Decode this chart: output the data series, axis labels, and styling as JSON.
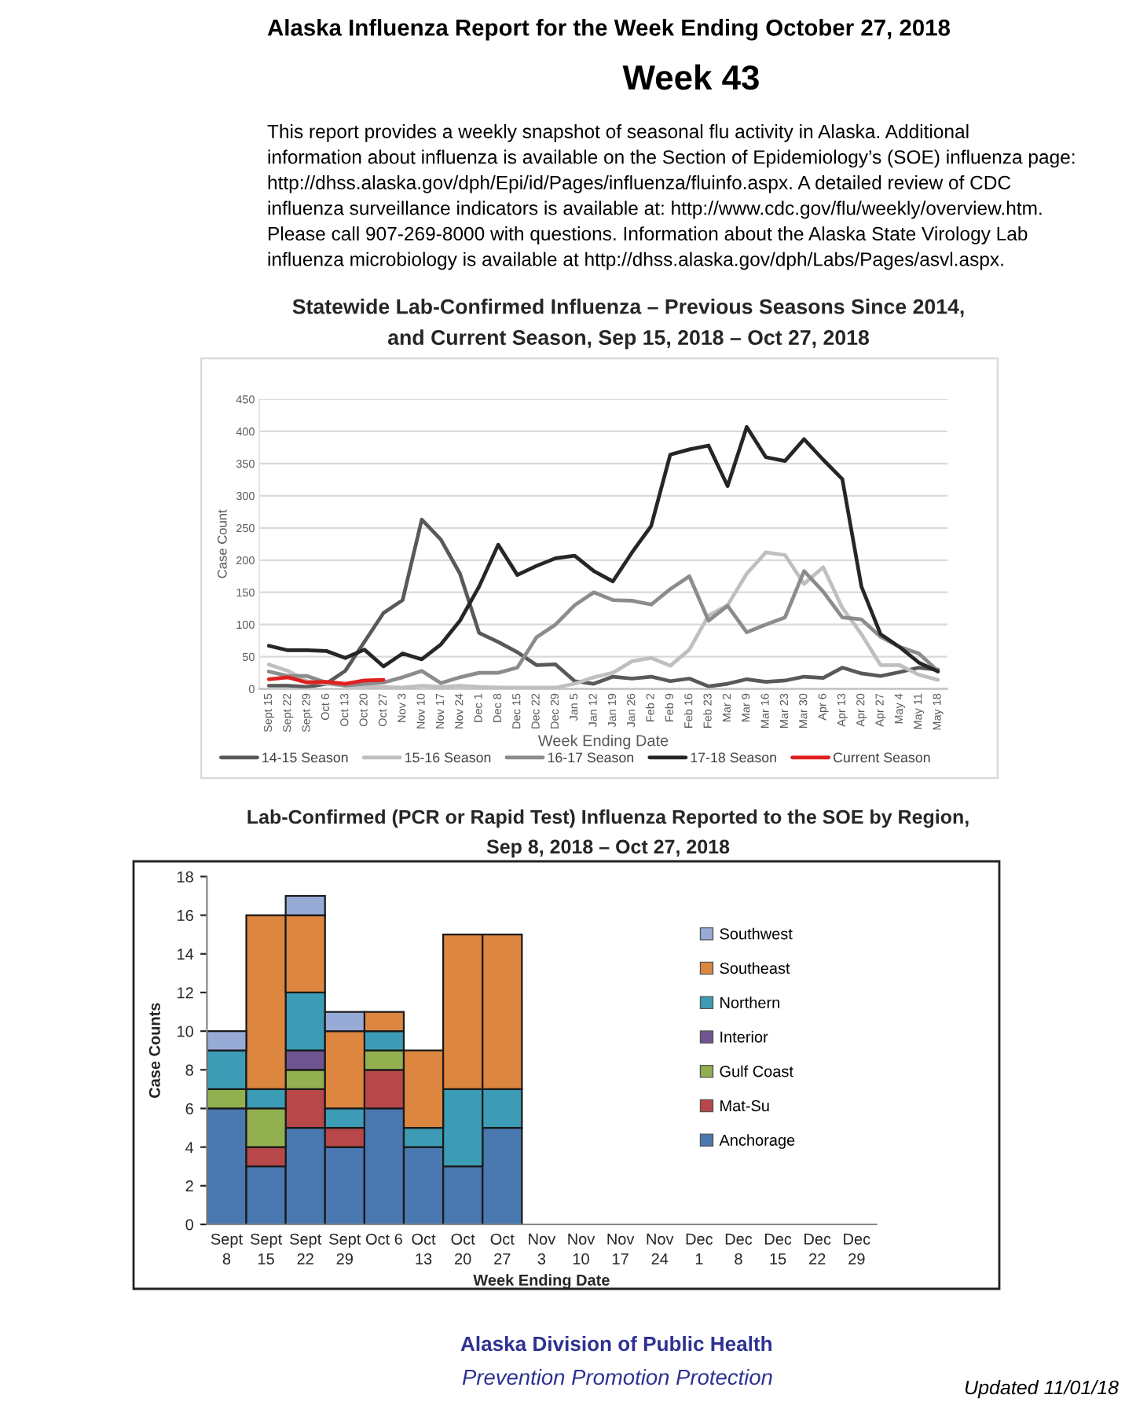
{
  "chart_data": [
    {
      "type": "other",
      "title": "Alaska Influenza Report for the Week Ending October 27, 2018",
      "subtitle": "Week 43",
      "annotations": [
        "This report provides a weekly snapshot of seasonal flu activity in Alaska. Additional\ninformation about influenza is available on the Section of Epidemiology’s (SOE) influenza page:\nhttp://dhss.alaska.gov/dph/Epi/id/Pages/influenza/fluinfo.aspx. A detailed review of CDC\ninfluenza surveillance indicators is available at: http://www.cdc.gov/flu/weekly/overview.htm.\nPlease call 907-269-8000 with questions. Information about the Alaska State Virology Lab\ninfluenza microbiology is available at http://dhss.alaska.gov/dph/Labs/Pages/asvl.aspx."
      ]
    },
    {
      "type": "line",
      "title": "Statewide Lab-Confirmed Influenza – Previous Seasons Since 2014,\nand Current Season, Sep 15, 2018 – Oct 27, 2018",
      "xlabel": "Week Ending Date",
      "ylabel": "Case Count",
      "categories": [
        "Sept 15",
        "Sept 22",
        "Sept 29",
        "Oct 6",
        "Oct 13",
        "Oct 20",
        "Oct 27",
        "Nov 3",
        "Nov 10",
        "Nov 17",
        "Nov 24",
        "Dec 1",
        "Dec 8",
        "Dec 15",
        "Dec 22",
        "Dec 29",
        "Jan 5",
        "Jan 12",
        "Jan 19",
        "Jan 26",
        "Feb 2",
        "Feb 9",
        "Feb 16",
        "Feb 23",
        "Mar 2",
        "Mar 9",
        "Mar 16",
        "Mar 23",
        "Mar 30",
        "Apr 6",
        "Apr 13",
        "Apr 20",
        "Apr 27",
        "May 4",
        "May 11",
        "May 18"
      ],
      "series": [
        {
          "name": "14-15 Season",
          "color": "#595959",
          "values": [
            5,
            5,
            3,
            8,
            28,
            73,
            118,
            138,
            263,
            232,
            179,
            87,
            73,
            57,
            37,
            38,
            12,
            8,
            19,
            16,
            19,
            12,
            16,
            4,
            8,
            15,
            11,
            13,
            19,
            17,
            33,
            24,
            20,
            26,
            33,
            30
          ]
        },
        {
          "name": "15-16 Season",
          "color": "#bfbfbf",
          "values": [
            38,
            28,
            12,
            8,
            5,
            4,
            3,
            2,
            5,
            3,
            5,
            3,
            2,
            2,
            2,
            2,
            8,
            18,
            25,
            43,
            48,
            36,
            61,
            114,
            130,
            179,
            212,
            208,
            163,
            189,
            126,
            85,
            37,
            37,
            22,
            14
          ]
        },
        {
          "name": "16-17 Season",
          "color": "#8c8c8c",
          "values": [
            27,
            20,
            20,
            10,
            5,
            8,
            10,
            18,
            28,
            9,
            18,
            25,
            25,
            33,
            80,
            100,
            130,
            150,
            138,
            137,
            131,
            155,
            175,
            106,
            129,
            88,
            100,
            111,
            183,
            151,
            111,
            108,
            81,
            65,
            55,
            28
          ]
        },
        {
          "name": "17-18 Season",
          "color": "#262626",
          "values": [
            67,
            60,
            60,
            59,
            48,
            61,
            35,
            55,
            46,
            69,
            106,
            159,
            224,
            177,
            191,
            203,
            207,
            183,
            167,
            212,
            253,
            364,
            372,
            378,
            315,
            407,
            360,
            354,
            388,
            356,
            326,
            159,
            85,
            65,
            41,
            27
          ]
        },
        {
          "name": "Current Season",
          "color": "#e02020",
          "values": [
            15,
            18,
            10,
            11,
            8,
            13,
            14,
            null,
            null,
            null,
            null,
            null,
            null,
            null,
            null,
            null,
            null,
            null,
            null,
            null,
            null,
            null,
            null,
            null,
            null,
            null,
            null,
            null,
            null,
            null,
            null,
            null,
            null,
            null,
            null,
            null
          ]
        }
      ],
      "ylim": [
        0,
        450
      ],
      "yticks": [
        0,
        50,
        100,
        150,
        200,
        250,
        300,
        350,
        400,
        450
      ],
      "grid": "y",
      "legend": "bottom"
    },
    {
      "type": "bar",
      "stacked": true,
      "title": "Lab-Confirmed (PCR or Rapid Test) Influenza Reported to the SOE by Region,\nSep 8, 2018 – Oct 27, 2018",
      "xlabel": "Week Ending Date",
      "ylabel": "Case Counts",
      "categories": [
        "Sept\n8",
        "Sept\n15",
        "Sept\n22",
        "Sept\n29",
        "Oct 6",
        "Oct\n13",
        "Oct\n20",
        "Oct\n27",
        "Nov\n3",
        "Nov\n10",
        "Nov\n17",
        "Nov\n24",
        "Dec\n1",
        "Dec\n8",
        "Dec\n15",
        "Dec\n22",
        "Dec\n29"
      ],
      "series": [
        {
          "name": "Anchorage",
          "color": "#4a78b0",
          "values": [
            6,
            3,
            5,
            4,
            6,
            4,
            3,
            5,
            null,
            null,
            null,
            null,
            null,
            null,
            null,
            null,
            null
          ]
        },
        {
          "name": "Mat-Su",
          "color": "#b8474a",
          "values": [
            0,
            1,
            2,
            1,
            2,
            0,
            0,
            0,
            null,
            null,
            null,
            null,
            null,
            null,
            null,
            null,
            null
          ]
        },
        {
          "name": "Gulf Coast",
          "color": "#93b050",
          "values": [
            1,
            2,
            1,
            0,
            1,
            0,
            0,
            0,
            null,
            null,
            null,
            null,
            null,
            null,
            null,
            null,
            null
          ]
        },
        {
          "name": "Interior",
          "color": "#6e5590",
          "values": [
            0,
            0,
            1,
            0,
            0,
            0,
            0,
            0,
            null,
            null,
            null,
            null,
            null,
            null,
            null,
            null,
            null
          ]
        },
        {
          "name": "Northern",
          "color": "#3d9cb5",
          "values": [
            2,
            1,
            3,
            1,
            1,
            1,
            4,
            2,
            null,
            null,
            null,
            null,
            null,
            null,
            null,
            null,
            null
          ]
        },
        {
          "name": "Southeast",
          "color": "#dd8640",
          "values": [
            0,
            9,
            4,
            4,
            1,
            4,
            8,
            8,
            null,
            null,
            null,
            null,
            null,
            null,
            null,
            null,
            null
          ]
        },
        {
          "name": "Southwest",
          "color": "#97abd6",
          "values": [
            1,
            0,
            1,
            1,
            0,
            0,
            0,
            0,
            null,
            null,
            null,
            null,
            null,
            null,
            null,
            null,
            null
          ]
        }
      ],
      "ylim": [
        0,
        18
      ],
      "yticks": [
        0,
        2,
        4,
        6,
        8,
        10,
        12,
        14,
        16,
        18
      ],
      "grid": false,
      "legend": "right"
    },
    {
      "type": "other",
      "annotations": [
        "Alaska Division of Public Health",
        "Prevention Promotion Protection",
        "Updated 11/01/18"
      ]
    }
  ]
}
